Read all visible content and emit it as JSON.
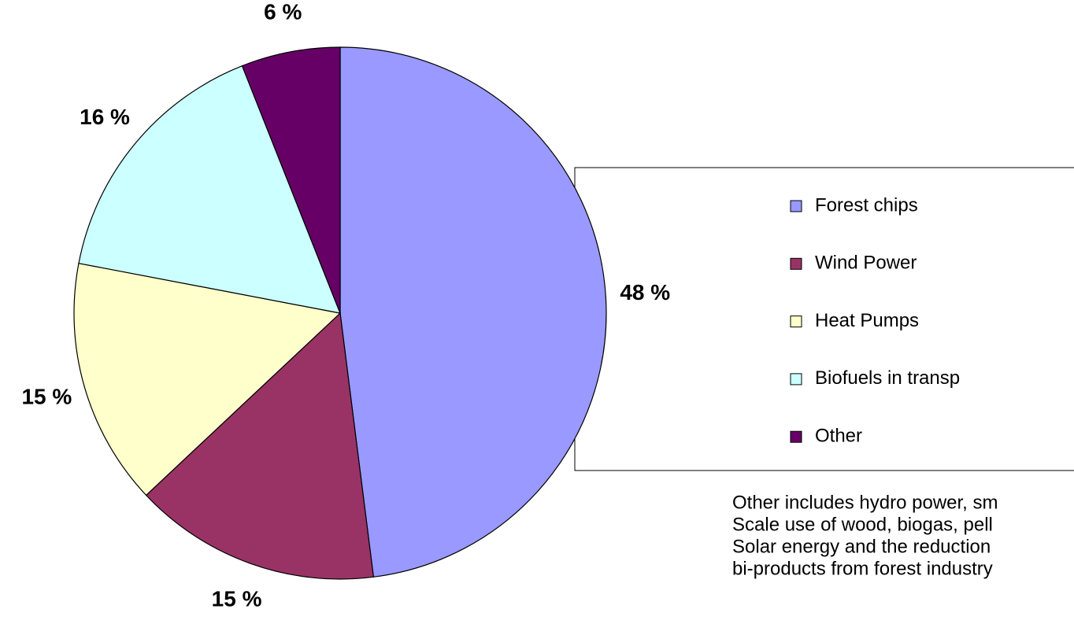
{
  "chart_data": {
    "type": "pie",
    "categories": [
      "Forest chips",
      "Wind Power",
      "Heat Pumps",
      "Biofuels in transp",
      "Other"
    ],
    "values": [
      48,
      15,
      15,
      16,
      6
    ],
    "value_labels": [
      "48 %",
      "15 %",
      "15 %",
      "16 %",
      "6 %"
    ],
    "colors": [
      "#9999ff",
      "#993366",
      "#ffffcc",
      "#ccffff",
      "#660066"
    ],
    "legend": "right",
    "note": [
      "Other includes hydro power, sm",
      "Scale use of wood, biogas, pell",
      "Solar energy and the reduction",
      "bi-products from forest industry"
    ]
  }
}
